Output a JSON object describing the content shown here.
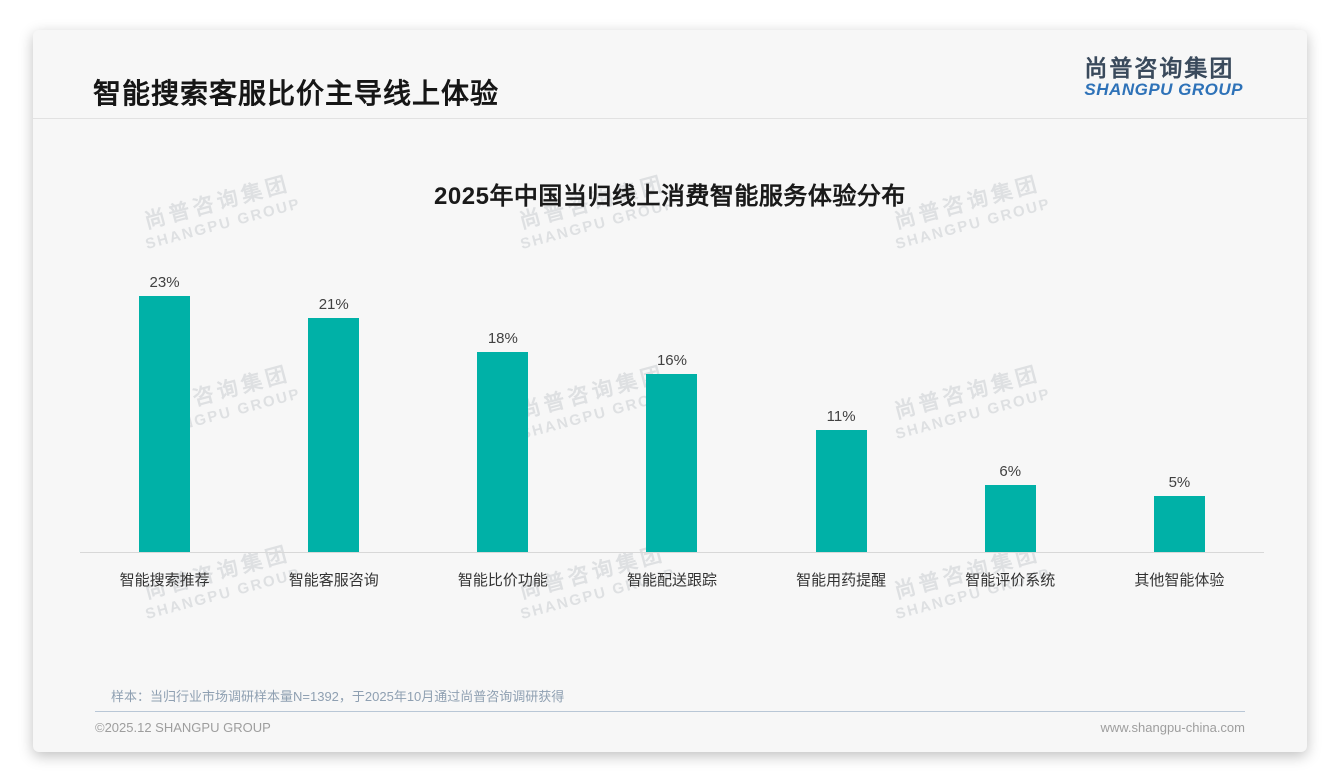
{
  "page": {
    "slide_title": "智能搜索客服比价主导线上体验",
    "logo": {
      "cn": "尚普咨询集团",
      "en": "SHANGPU GROUP"
    },
    "watermark": {
      "cn": "尚普咨询集团",
      "en": "SHANGPU GROUP"
    },
    "footnote": "样本：当归行业市场调研样本量N=1392，于2025年10月通过尚普咨询调研获得",
    "footer": {
      "left": "©2025.12 SHANGPU GROUP",
      "right": "www.shangpu-china.com"
    }
  },
  "colors": {
    "bar": "#00b1a7",
    "logo_cn": "#3a4a5c",
    "logo_en": "#2e72b8",
    "card_bg": "#f7f7f7",
    "footnote_text": "#8fa0b2"
  },
  "chart_data": {
    "type": "bar",
    "title": "2025年中国当归线上消费智能服务体验分布",
    "categories": [
      "智能搜索推荐",
      "智能客服咨询",
      "智能比价功能",
      "智能配送跟踪",
      "智能用药提醒",
      "智能评价系统",
      "其他智能体验"
    ],
    "values": [
      23,
      21,
      18,
      16,
      11,
      6,
      5
    ],
    "value_labels": [
      "23%",
      "21%",
      "18%",
      "16%",
      "11%",
      "6%",
      "5%"
    ],
    "unit": "%",
    "xlabel": "",
    "ylabel": "",
    "ylim": [
      0,
      25
    ],
    "grid": false,
    "legend": false,
    "bar_color": "#00b1a7"
  }
}
